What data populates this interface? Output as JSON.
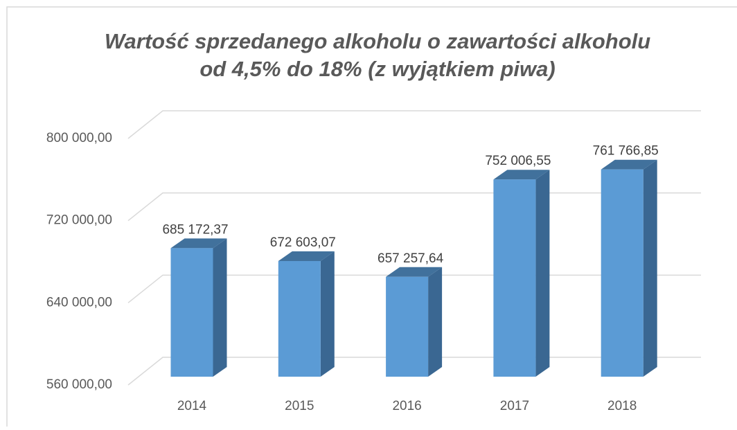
{
  "chart_data": {
    "type": "bar3d",
    "title": [
      "Wartość sprzedanego alkoholu o zawartości alkoholu",
      "od 4,5% do 18% (z wyjątkiem piwa)"
    ],
    "categories": [
      "2014",
      "2015",
      "2016",
      "2017",
      "2018"
    ],
    "values": [
      685172.37,
      672603.07,
      657257.64,
      752006.55,
      761766.85
    ],
    "value_labels": [
      "685 172,37",
      "672 603,07",
      "657 257,64",
      "752 006,55",
      "761 766,85"
    ],
    "color": "#5b9bd5",
    "ylim": [
      560000,
      800000
    ],
    "yticks": [
      {
        "value": 560000,
        "label": "560 000,00"
      },
      {
        "value": 640000,
        "label": "640 000,00"
      },
      {
        "value": 720000,
        "label": "720 000,00"
      },
      {
        "value": 800000,
        "label": "800 000,00"
      }
    ],
    "grid": true
  }
}
